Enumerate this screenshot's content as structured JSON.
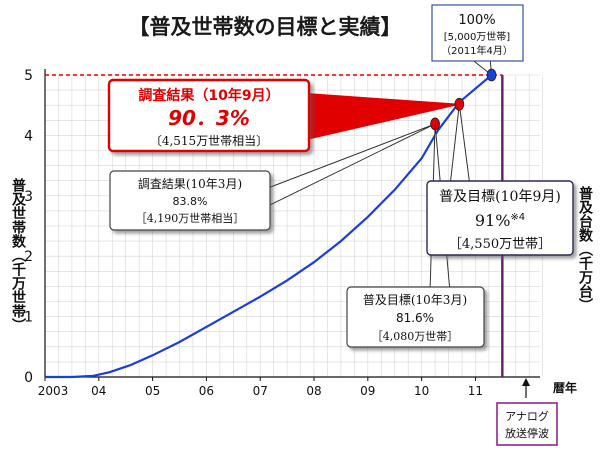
{
  "chart_data": {
    "type": "line",
    "title": "【普及世帯数の目標と実績】",
    "ylabel_left": "普及世帯数（千万世帯）",
    "ylabel_right": "普及台数（千万台）",
    "xlabel": "暦年",
    "ylim": [
      0,
      5
    ],
    "xlim": [
      2003,
      2012.2
    ],
    "y_ticks": [
      "0",
      "1",
      "2",
      "3",
      "4",
      "5"
    ],
    "x_ticks": [
      {
        "label": "2003",
        "x": 2003
      },
      {
        "label": "04",
        "x": 2004
      },
      {
        "label": "05",
        "x": 2005
      },
      {
        "label": "06",
        "x": 2006
      },
      {
        "label": "07",
        "x": 2007
      },
      {
        "label": "08",
        "x": 2008
      },
      {
        "label": "09",
        "x": 2009
      },
      {
        "label": "10",
        "x": 2010
      },
      {
        "label": "11",
        "x": 2011
      }
    ],
    "grid": true,
    "target_line": {
      "y": 5.0,
      "color": "#e00000"
    },
    "series": [
      {
        "color": "#1a3fd6",
        "x": [
          2003.0,
          2003.5,
          2003.9,
          2004.2,
          2004.6,
          2005.0,
          2005.5,
          2006.0,
          2006.5,
          2007.0,
          2007.5,
          2008.0,
          2008.5,
          2009.0,
          2009.5,
          2010.0,
          2010.3,
          2010.7,
          2011.3
        ],
        "y": [
          0.0,
          0.0,
          0.02,
          0.08,
          0.2,
          0.36,
          0.58,
          0.83,
          1.08,
          1.33,
          1.6,
          1.9,
          2.25,
          2.65,
          3.1,
          3.62,
          4.08,
          4.55,
          5.0
        ]
      }
    ],
    "points": [
      {
        "x": 2010.25,
        "y": 4.19,
        "color": "#e00000"
      },
      {
        "x": 2010.7,
        "y": 4.515,
        "color": "#e00000"
      },
      {
        "x": 2011.3,
        "y": 5.0,
        "color": "#1a3fd6"
      }
    ],
    "analog_end_x": 2011.5,
    "annotations": {
      "full": {
        "title": "100%",
        "detail": "[5,000万世帯]",
        "date": "（2011年4月）"
      },
      "result_sep": {
        "title": "調査結果（10年9月）",
        "value": "90．3%",
        "detail": "〔4,515万世帯相当〕"
      },
      "result_mar": {
        "title": "調査結果(10年3月)",
        "value": "83.8%",
        "detail": "［4,190万世帯相当］"
      },
      "target_sep": {
        "title": "普及目標(10年9月)",
        "value": "91%",
        "note": "※4",
        "detail": "［4,550万世帯］"
      },
      "target_mar": {
        "title": "普及目標(10年3月)",
        "value": "81.6%",
        "detail": "［4,080万世帯］"
      },
      "analog": {
        "line1": "アナログ",
        "line2": "放送停波"
      }
    }
  }
}
